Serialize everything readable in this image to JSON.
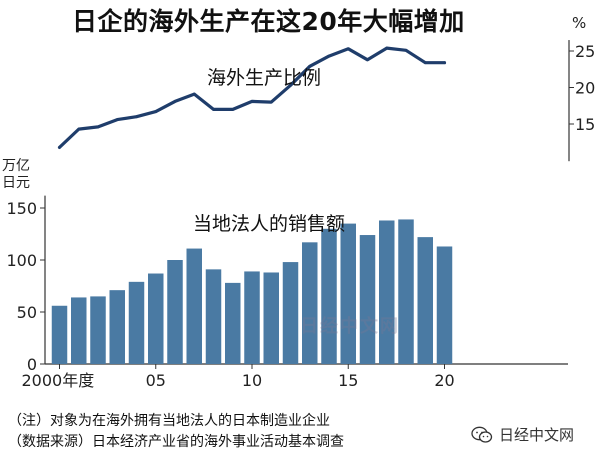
{
  "title": "日企的海外生产在这20年大幅增加",
  "notes": {
    "note": "（注）对象为在海外拥有当地法人的日本制造业企业",
    "source": "（数据来源）日本经济产业省的海外事业活动基本调查"
  },
  "watermark": "日经中文网",
  "badge": {
    "text": "日经中文网",
    "icon": "wechat-icon"
  },
  "colors": {
    "bar": "#4a7aa3",
    "line": "#1f3d6b",
    "axis": "#333333"
  },
  "chart_data": [
    {
      "type": "line",
      "title": "海外生产比例",
      "unit": "%",
      "x": [
        2000,
        2001,
        2002,
        2003,
        2004,
        2005,
        2006,
        2007,
        2008,
        2009,
        2010,
        2011,
        2012,
        2013,
        2014,
        2015,
        2016,
        2017,
        2018,
        2019,
        2020
      ],
      "values": [
        11.8,
        14.3,
        14.6,
        15.6,
        16.0,
        16.7,
        18.1,
        19.1,
        17.0,
        17.0,
        18.1,
        18.0,
        20.3,
        22.9,
        24.3,
        25.3,
        23.8,
        25.4,
        25.1,
        23.4,
        23.4
      ],
      "ylim": [
        11,
        26.5
      ],
      "yticks": [
        15,
        20,
        25
      ],
      "ytick_labels": [
        "15",
        "20",
        "25"
      ],
      "axis_side": "right"
    },
    {
      "type": "bar",
      "title": "当地法人的销售额",
      "unit_line1": "万亿",
      "unit_line2": "日元",
      "x": [
        2000,
        2001,
        2002,
        2003,
        2004,
        2005,
        2006,
        2007,
        2008,
        2009,
        2010,
        2011,
        2012,
        2013,
        2014,
        2015,
        2016,
        2017,
        2018,
        2019,
        2020
      ],
      "values": [
        56,
        64,
        65,
        71,
        79,
        87,
        100,
        111,
        91,
        78,
        89,
        88,
        98,
        117,
        130,
        135,
        124,
        138,
        139,
        122,
        113
      ],
      "ylim": [
        0,
        160
      ],
      "yticks": [
        0,
        50,
        100,
        150
      ],
      "ytick_labels": [
        "0",
        "50",
        "100",
        "150"
      ],
      "xtick_labels": [
        {
          "x": 2000,
          "label": "2000年度"
        },
        {
          "x": 2005,
          "label": "05"
        },
        {
          "x": 2010,
          "label": "10"
        },
        {
          "x": 2015,
          "label": "15"
        },
        {
          "x": 2020,
          "label": "20"
        }
      ]
    }
  ]
}
